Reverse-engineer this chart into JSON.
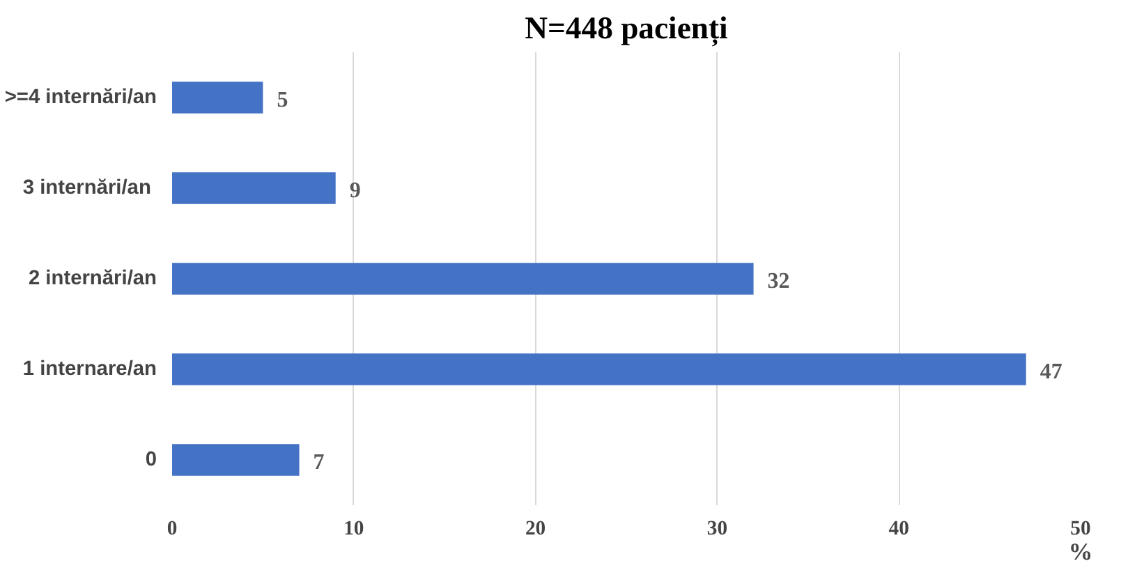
{
  "chart_data": {
    "type": "bar",
    "orientation": "horizontal",
    "title": "N=448 pacienți",
    "xlabel": "%",
    "categories": [
      ">=4 internări/an",
      "3  internări/an",
      "2 internări/an",
      "1 internare/an",
      "0"
    ],
    "values": [
      5,
      9,
      32,
      47,
      7
    ],
    "color": "#4472c4",
    "xlim": [
      0,
      50
    ],
    "xticks": [
      0,
      10,
      20,
      30,
      40,
      50
    ],
    "grid": "x",
    "data_labels": true
  }
}
